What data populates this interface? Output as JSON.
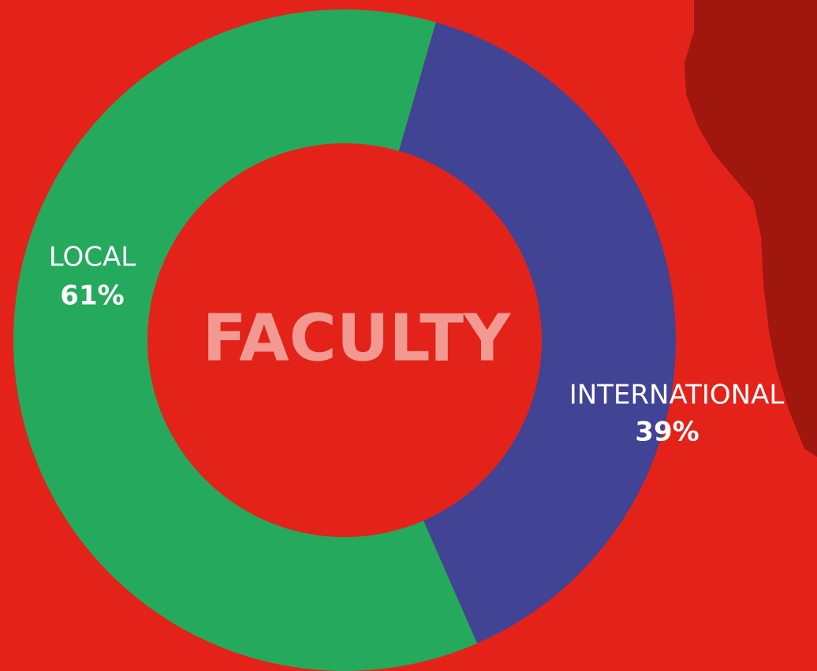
{
  "chart_data": {
    "type": "pie",
    "donut": true,
    "title": "FACULTY",
    "categories": [
      "LOCAL",
      "INTERNATIONAL"
    ],
    "values": [
      61,
      39
    ],
    "value_labels": [
      "61%",
      "39%"
    ],
    "colors": [
      "#25a95c",
      "#414394"
    ]
  }
}
